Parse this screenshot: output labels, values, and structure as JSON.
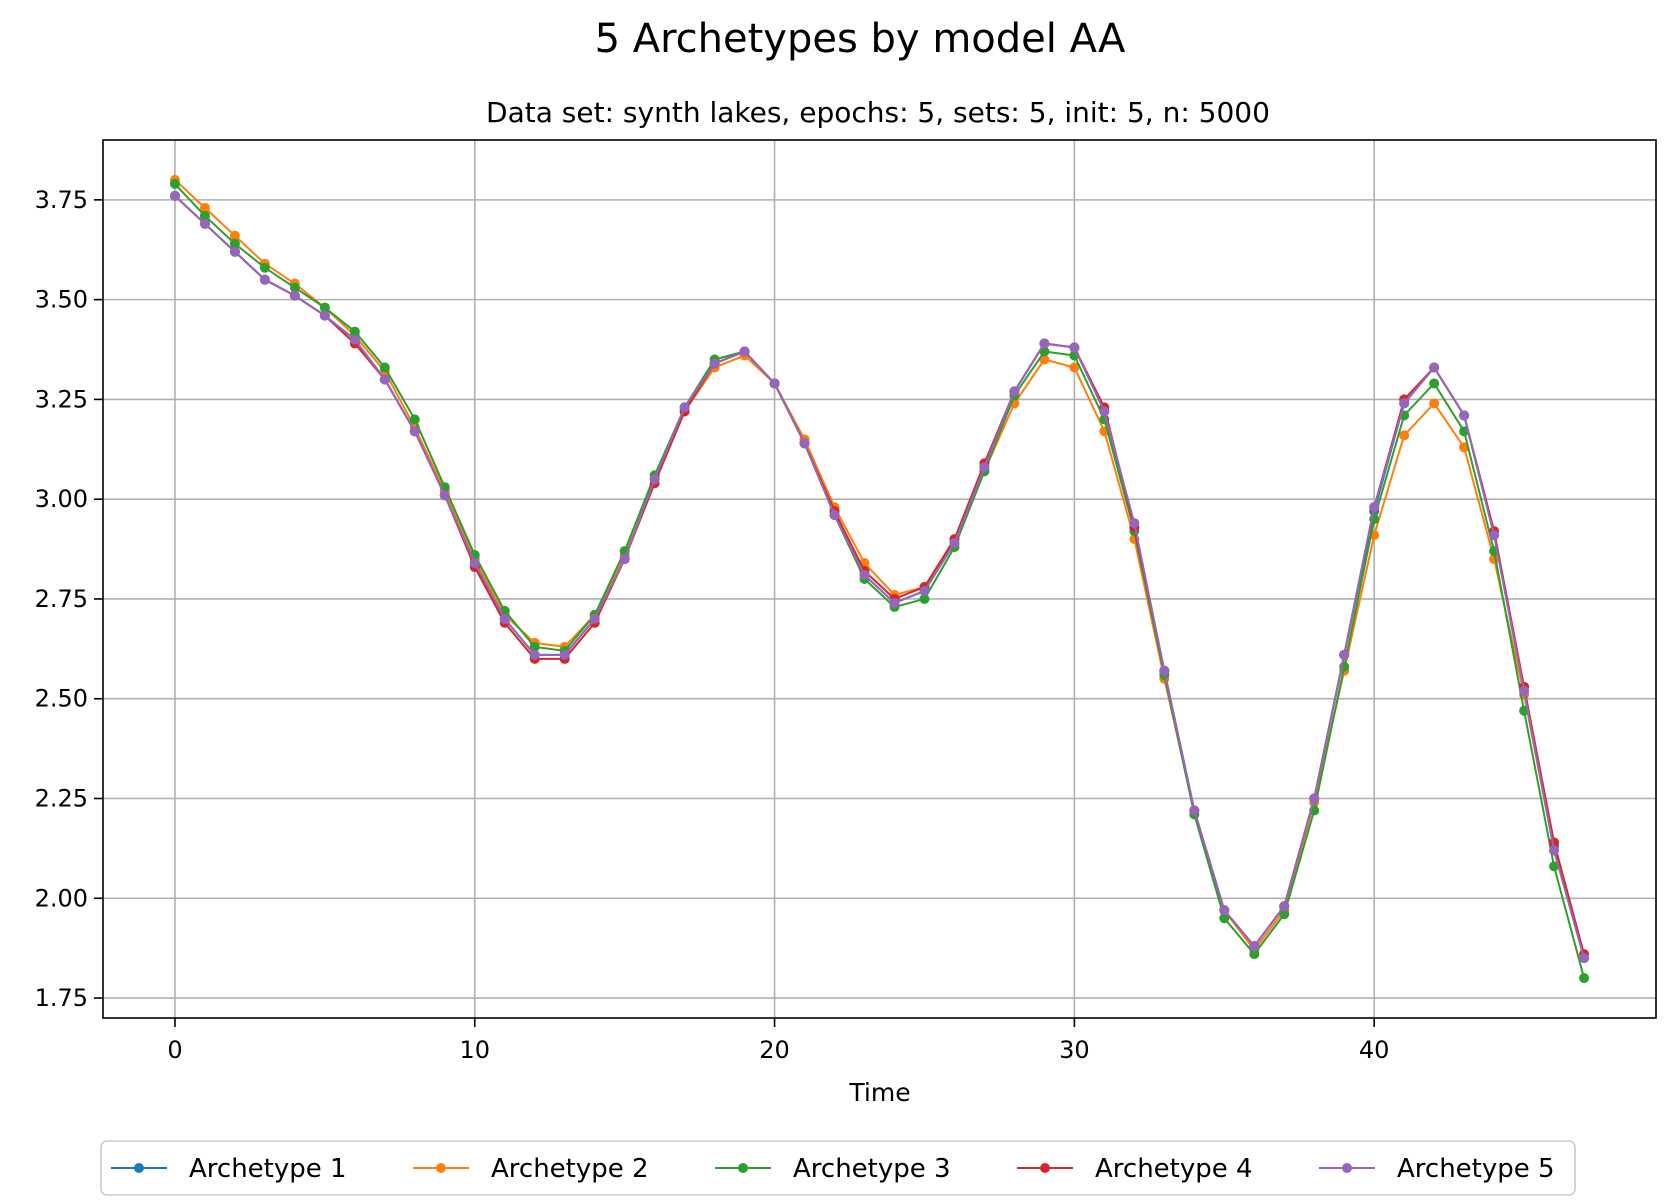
{
  "chart_data": {
    "type": "line",
    "title": "5 Archetypes by model AA",
    "subtitle": "Data set: synth lakes, epochs: 5, sets: 5, init: 5, n: 5000",
    "xlabel": "Time",
    "ylabel": "",
    "xlim": [
      -2.4,
      49.4
    ],
    "ylim": [
      1.7,
      3.9
    ],
    "xticks": [
      0,
      10,
      20,
      30,
      40
    ],
    "yticks": [
      1.75,
      2.0,
      2.25,
      2.5,
      2.75,
      3.0,
      3.25,
      3.5,
      3.75
    ],
    "xtick_labels": [
      "0",
      "10",
      "20",
      "30",
      "40"
    ],
    "ytick_labels": [
      "1.75",
      "2.00",
      "2.25",
      "2.50",
      "2.75",
      "3.00",
      "3.25",
      "3.50",
      "3.75"
    ],
    "grid": true,
    "legend": "bottom-center, below plot, 5 columns",
    "x": [
      0,
      1,
      2,
      3,
      4,
      5,
      6,
      7,
      8,
      9,
      10,
      11,
      12,
      13,
      14,
      15,
      16,
      17,
      18,
      19,
      20,
      21,
      22,
      23,
      24,
      25,
      26,
      27,
      28,
      29,
      30,
      31,
      32,
      33,
      34,
      35,
      36,
      37,
      38,
      39,
      40,
      41,
      42,
      43,
      44,
      45,
      46,
      47
    ],
    "series": [
      {
        "name": "Archetype 1",
        "color": "#1f77b4",
        "values": [
          3.76,
          3.69,
          3.62,
          3.55,
          3.51,
          3.46,
          3.4,
          3.3,
          3.17,
          3.01,
          2.84,
          2.7,
          2.61,
          2.61,
          2.7,
          2.85,
          3.05,
          3.23,
          3.34,
          3.37,
          3.29,
          3.14,
          2.97,
          2.81,
          2.74,
          2.77,
          2.89,
          3.08,
          3.27,
          3.39,
          3.38,
          3.22,
          2.93,
          2.57,
          2.22,
          1.97,
          1.88,
          1.98,
          2.25,
          2.61,
          2.97,
          3.24,
          3.33,
          3.21,
          2.91,
          2.52,
          2.13,
          1.85
        ]
      },
      {
        "name": "Archetype 2",
        "color": "#ff7f0e",
        "values": [
          3.8,
          3.73,
          3.66,
          3.59,
          3.54,
          3.48,
          3.41,
          3.32,
          3.18,
          3.02,
          2.85,
          2.71,
          2.64,
          2.63,
          2.71,
          2.86,
          3.05,
          3.22,
          3.33,
          3.36,
          3.29,
          3.15,
          2.98,
          2.84,
          2.76,
          2.78,
          2.89,
          3.07,
          3.24,
          3.35,
          3.33,
          3.17,
          2.9,
          2.55,
          2.22,
          1.97,
          1.87,
          1.97,
          2.24,
          2.57,
          2.91,
          3.16,
          3.24,
          3.13,
          2.85,
          2.51,
          2.12,
          1.85
        ]
      },
      {
        "name": "Archetype 3",
        "color": "#2ca02c",
        "values": [
          3.79,
          3.71,
          3.64,
          3.58,
          3.53,
          3.48,
          3.42,
          3.33,
          3.2,
          3.03,
          2.86,
          2.72,
          2.63,
          2.62,
          2.71,
          2.87,
          3.06,
          3.23,
          3.35,
          3.37,
          3.29,
          3.14,
          2.96,
          2.8,
          2.73,
          2.75,
          2.88,
          3.07,
          3.26,
          3.37,
          3.36,
          3.2,
          2.92,
          2.56,
          2.21,
          1.95,
          1.86,
          1.96,
          2.22,
          2.58,
          2.95,
          3.21,
          3.29,
          3.17,
          2.87,
          2.47,
          2.08,
          1.8
        ]
      },
      {
        "name": "Archetype 4",
        "color": "#d62728",
        "values": [
          3.76,
          3.69,
          3.62,
          3.55,
          3.51,
          3.46,
          3.39,
          3.3,
          3.17,
          3.01,
          2.83,
          2.69,
          2.6,
          2.6,
          2.69,
          2.85,
          3.04,
          3.22,
          3.34,
          3.37,
          3.29,
          3.14,
          2.97,
          2.82,
          2.75,
          2.78,
          2.9,
          3.09,
          3.27,
          3.39,
          3.38,
          3.23,
          2.93,
          2.57,
          2.22,
          1.97,
          1.88,
          1.98,
          2.25,
          2.61,
          2.98,
          3.25,
          3.33,
          3.21,
          2.92,
          2.53,
          2.14,
          1.86
        ]
      },
      {
        "name": "Archetype 5",
        "color": "#9467bd",
        "values": [
          3.76,
          3.69,
          3.62,
          3.55,
          3.51,
          3.46,
          3.4,
          3.3,
          3.17,
          3.01,
          2.84,
          2.7,
          2.61,
          2.61,
          2.7,
          2.85,
          3.05,
          3.23,
          3.34,
          3.37,
          3.29,
          3.14,
          2.96,
          2.81,
          2.74,
          2.77,
          2.89,
          3.08,
          3.27,
          3.39,
          3.38,
          3.22,
          2.94,
          2.57,
          2.22,
          1.97,
          1.88,
          1.98,
          2.25,
          2.61,
          2.98,
          3.24,
          3.33,
          3.21,
          2.91,
          2.52,
          2.12,
          1.85
        ]
      }
    ]
  }
}
